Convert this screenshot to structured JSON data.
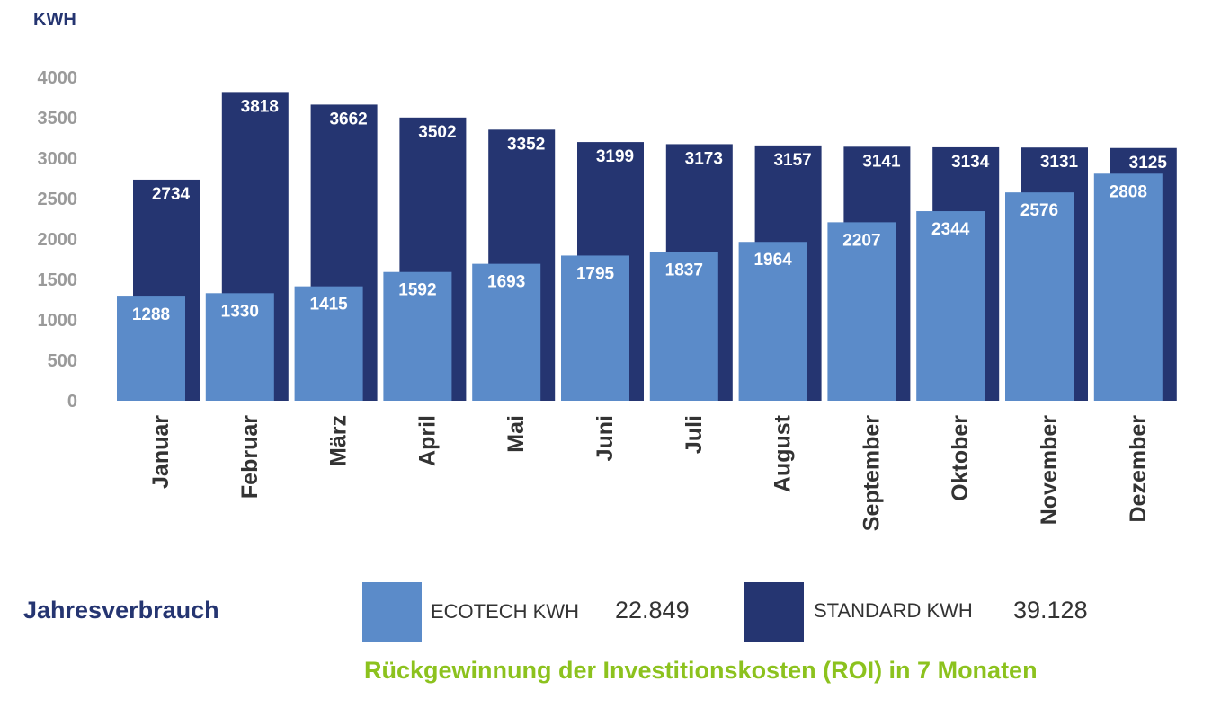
{
  "chart_data": {
    "type": "bar",
    "ylabel": "KWH",
    "ylim": [
      0,
      4000
    ],
    "yticks": [
      0,
      500,
      1000,
      1500,
      2000,
      2500,
      3000,
      3500,
      4000
    ],
    "categories": [
      "Januar",
      "Februar",
      "März",
      "April",
      "Mai",
      "Juni",
      "Juli",
      "August",
      "September",
      "Oktober",
      "November",
      "Dezember"
    ],
    "series": [
      {
        "name": "STANDARD KWH",
        "color": "#253571",
        "values": [
          2734,
          3818,
          3662,
          3502,
          3352,
          3199,
          3173,
          3157,
          3141,
          3134,
          3131,
          3125
        ]
      },
      {
        "name": "ECOTECH KWH",
        "color": "#5b8bc9",
        "values": [
          1288,
          1330,
          1415,
          1592,
          1693,
          1795,
          1837,
          1964,
          2207,
          2344,
          2576,
          2808
        ]
      }
    ],
    "grid": false
  },
  "legend": {
    "title": "Jahresverbrauch",
    "ecotech_label": "ECOTECH KWH",
    "ecotech_total": "22.849",
    "standard_label": "STANDARD KWH",
    "standard_total": "39.128"
  },
  "footnote": "Rückgewinnung der Investitionskosten (ROI) in 7 Monaten"
}
